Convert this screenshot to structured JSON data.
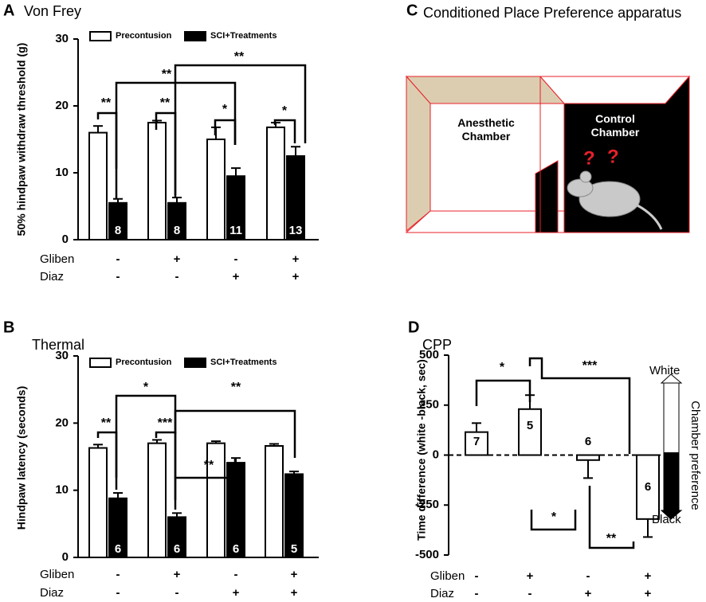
{
  "chart_data": [
    {
      "type": "bar",
      "panel_label": "A",
      "title": "Von Frey",
      "y_label": "50% hindpaw withdraw threshold (g)",
      "ylim": [
        0,
        30
      ],
      "yticks": [
        0,
        10,
        20,
        30
      ],
      "legend": "top",
      "series": [
        {
          "name": "Precontusion",
          "color": "#ffffff",
          "values": [
            16,
            17.5,
            15,
            16.8
          ],
          "errors": [
            1,
            0.3,
            1.8,
            0.7
          ]
        },
        {
          "name": "SCI+Treatments",
          "color": "#000000",
          "values": [
            5.5,
            5.5,
            9.5,
            12.5
          ],
          "errors": [
            0.6,
            0.8,
            1.2,
            1.4
          ]
        }
      ],
      "n": [
        8,
        8,
        11,
        13
      ],
      "significance": [
        "**",
        "**",
        "*",
        "*",
        "**",
        "**"
      ],
      "conditions": [
        {
          "name": "Gliben",
          "values": [
            "-",
            "+",
            "-",
            "+"
          ]
        },
        {
          "name": "Diaz",
          "values": [
            "-",
            "-",
            "+",
            "+"
          ]
        }
      ]
    },
    {
      "type": "bar",
      "panel_label": "B",
      "title": "Thermal",
      "y_label": "Hindpaw latency (seconds)",
      "ylim": [
        0,
        30
      ],
      "yticks": [
        0,
        10,
        20,
        30
      ],
      "legend": "top",
      "series": [
        {
          "name": "Precontusion",
          "color": "#ffffff",
          "values": [
            16.3,
            17,
            17,
            16.6
          ],
          "errors": [
            0.5,
            0.5,
            0.3,
            0.3
          ]
        },
        {
          "name": "SCI+Treatments",
          "color": "#000000",
          "values": [
            8.8,
            6,
            14.1,
            12.4
          ],
          "errors": [
            0.8,
            0.6,
            0.7,
            0.4
          ]
        }
      ],
      "n": [
        6,
        6,
        6,
        5
      ],
      "significance": [
        "**",
        "***",
        "*",
        "**",
        "**"
      ],
      "conditions": [
        {
          "name": "Gliben",
          "values": [
            "-",
            "+",
            "-",
            "+"
          ]
        },
        {
          "name": "Diaz",
          "values": [
            "-",
            "-",
            "+",
            "+"
          ]
        }
      ]
    },
    {
      "type": "bar",
      "panel_label": "D",
      "title": "CPP",
      "y_label": "Time difference (white -black, sec)",
      "ylim": [
        -500,
        500
      ],
      "yticks": [
        -500,
        -250,
        0,
        250,
        500
      ],
      "series": [
        {
          "color": "#ffffff",
          "values": [
            115,
            230,
            -25,
            -320
          ],
          "errors": [
            45,
            70,
            90,
            90
          ]
        }
      ],
      "n": [
        7,
        5,
        6,
        6
      ],
      "significance": [
        "*",
        "***",
        "*",
        "**"
      ],
      "conditions": [
        {
          "name": "Gliben",
          "values": [
            "-",
            "+",
            "-",
            "+"
          ]
        },
        {
          "name": "Diaz",
          "values": [
            "-",
            "-",
            "+",
            "+"
          ]
        }
      ],
      "preference_scale": {
        "top": "White",
        "bottom": "Black",
        "label": "Chamber preference"
      }
    }
  ],
  "diagram": {
    "panel_label": "C",
    "title": "Conditioned Place Preference apparatus",
    "chambers": [
      "Anesthetic Chamber",
      "Control Chamber"
    ],
    "marks": [
      "?",
      "?"
    ]
  }
}
